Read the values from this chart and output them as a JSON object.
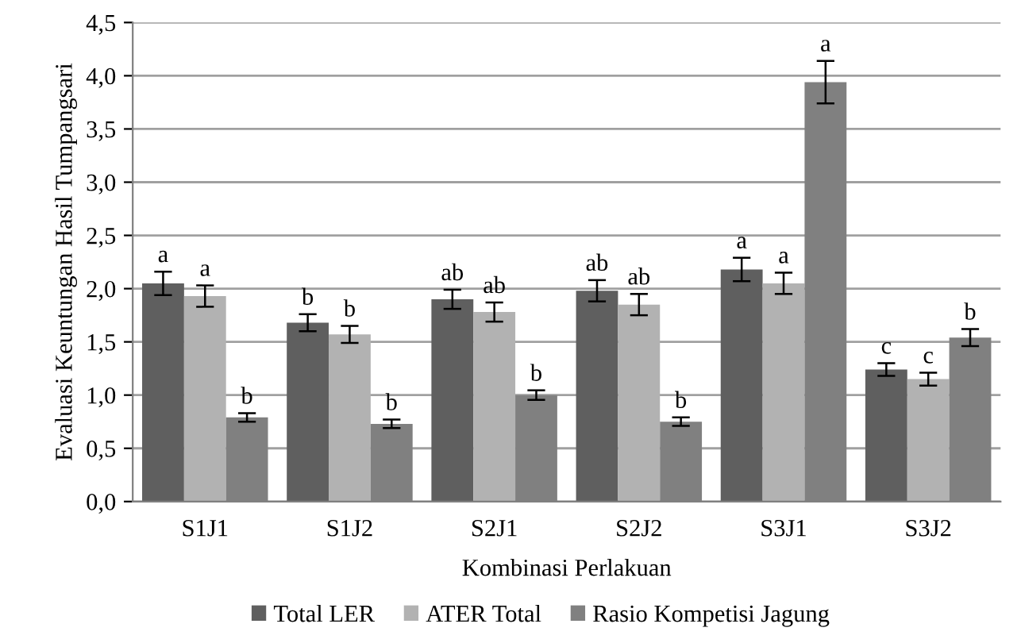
{
  "chart_data": {
    "type": "bar",
    "xlabel": "Kombinasi Perlakuan",
    "ylabel": "Evaluasi Keuntungan Hasil Tumpangsari",
    "categories": [
      "S1J1",
      "S1J2",
      "S2J1",
      "S2J2",
      "S3J1",
      "S3J2"
    ],
    "series": [
      {
        "name": "Total LER",
        "color": "#5f5f5f",
        "values": [
          2.05,
          1.68,
          1.9,
          1.98,
          2.18,
          1.24
        ],
        "errors": [
          0.11,
          0.08,
          0.09,
          0.1,
          0.11,
          0.06
        ],
        "value_labels": [
          "a",
          "b",
          "ab",
          "ab",
          "a",
          "c"
        ]
      },
      {
        "name": "ATER Total",
        "color": "#b2b2b2",
        "values": [
          1.93,
          1.57,
          1.78,
          1.85,
          2.05,
          1.15
        ],
        "errors": [
          0.1,
          0.08,
          0.09,
          0.1,
          0.1,
          0.06
        ],
        "value_labels": [
          "a",
          "b",
          "ab",
          "ab",
          "a",
          "c"
        ]
      },
      {
        "name": "Rasio Kompetisi Jagung",
        "color": "#808080",
        "values": [
          0.79,
          0.73,
          1.0,
          0.75,
          3.94,
          1.54
        ],
        "errors": [
          0.04,
          0.04,
          0.045,
          0.04,
          0.2,
          0.08
        ],
        "value_labels": [
          "b",
          "b",
          "b",
          "b",
          "a",
          "b"
        ]
      }
    ],
    "ylim": [
      0,
      4.5
    ],
    "yticks": [
      {
        "value": 0,
        "label": "0,0"
      },
      {
        "value": 0.5,
        "label": "0,5"
      },
      {
        "value": 1,
        "label": "1,0"
      },
      {
        "value": 1.5,
        "label": "1,5"
      },
      {
        "value": 2,
        "label": "2,0"
      },
      {
        "value": 2.5,
        "label": "2,5"
      },
      {
        "value": 3,
        "label": "3,0"
      },
      {
        "value": 3.5,
        "label": "3,5"
      },
      {
        "value": 4,
        "label": "4,0"
      },
      {
        "value": 4.5,
        "label": "4,5"
      }
    ],
    "grid": "y",
    "legend": "bottom"
  }
}
